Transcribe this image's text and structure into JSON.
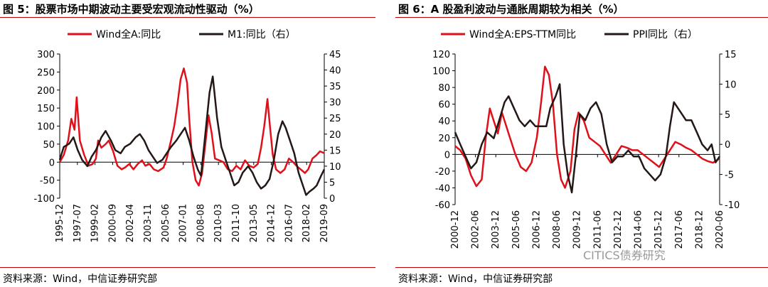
{
  "chart_data": [
    {
      "type": "line",
      "title": "图 5：股票市场中期波动主要受宏观流动性驱动（%）",
      "source": "资料来源：Wind，中信证券研究部",
      "x_ticks": [
        "1995-12",
        "1997-07",
        "1999-02",
        "2000-09",
        "2002-04",
        "2003-11",
        "2005-06",
        "2007-01",
        "2008-08",
        "2010-03",
        "2011-10",
        "2013-05",
        "2014-12",
        "2016-07",
        "2018-02",
        "2019-09"
      ],
      "x_range": [
        1995.92,
        2020.6
      ],
      "y_left": {
        "ticks": [
          "300",
          "250",
          "200",
          "150",
          "100",
          "50",
          "0",
          "-50",
          "-100"
        ],
        "lim": [
          -100,
          300
        ]
      },
      "y_right": {
        "ticks": [
          "45",
          "40",
          "35",
          "30",
          "25",
          "20",
          "15",
          "10",
          "5",
          "0"
        ],
        "lim": [
          0,
          45
        ]
      },
      "series": [
        {
          "name": "Wind全A:同比",
          "axis": "left",
          "color": "#e0101a",
          "points": [
            [
              1995.92,
              0
            ],
            [
              1996.3,
              20
            ],
            [
              1996.7,
              60
            ],
            [
              1997.0,
              120
            ],
            [
              1997.3,
              90
            ],
            [
              1997.5,
              180
            ],
            [
              1997.8,
              60
            ],
            [
              1998.2,
              20
            ],
            [
              1998.6,
              -10
            ],
            [
              1999.0,
              -5
            ],
            [
              1999.3,
              10
            ],
            [
              1999.5,
              60
            ],
            [
              1999.8,
              40
            ],
            [
              2000.2,
              50
            ],
            [
              2000.5,
              60
            ],
            [
              2000.9,
              30
            ],
            [
              2001.3,
              -10
            ],
            [
              2001.7,
              -20
            ],
            [
              2002.0,
              -15
            ],
            [
              2002.4,
              -5
            ],
            [
              2002.8,
              -20
            ],
            [
              2003.2,
              -5
            ],
            [
              2003.6,
              5
            ],
            [
              2003.9,
              -10
            ],
            [
              2004.3,
              -5
            ],
            [
              2004.7,
              -20
            ],
            [
              2005.1,
              -25
            ],
            [
              2005.6,
              -15
            ],
            [
              2005.9,
              10
            ],
            [
              2006.3,
              60
            ],
            [
              2006.6,
              100
            ],
            [
              2006.9,
              160
            ],
            [
              2007.2,
              230
            ],
            [
              2007.5,
              260
            ],
            [
              2007.8,
              220
            ],
            [
              2008.0,
              120
            ],
            [
              2008.3,
              0
            ],
            [
              2008.6,
              -50
            ],
            [
              2008.9,
              -65
            ],
            [
              2009.2,
              -30
            ],
            [
              2009.5,
              50
            ],
            [
              2009.8,
              130
            ],
            [
              2010.1,
              80
            ],
            [
              2010.4,
              10
            ],
            [
              2010.8,
              5
            ],
            [
              2011.2,
              0
            ],
            [
              2011.6,
              -20
            ],
            [
              2012.0,
              -25
            ],
            [
              2012.4,
              -10
            ],
            [
              2012.8,
              -20
            ],
            [
              2013.2,
              5
            ],
            [
              2013.6,
              -10
            ],
            [
              2014.0,
              -15
            ],
            [
              2014.4,
              -5
            ],
            [
              2014.7,
              40
            ],
            [
              2015.0,
              100
            ],
            [
              2015.3,
              175
            ],
            [
              2015.5,
              110
            ],
            [
              2015.8,
              20
            ],
            [
              2016.1,
              -20
            ],
            [
              2016.5,
              -30
            ],
            [
              2016.9,
              -20
            ],
            [
              2017.3,
              10
            ],
            [
              2017.7,
              0
            ],
            [
              2018.0,
              -10
            ],
            [
              2018.4,
              -20
            ],
            [
              2018.8,
              -30
            ],
            [
              2019.1,
              -20
            ],
            [
              2019.5,
              10
            ],
            [
              2019.9,
              20
            ],
            [
              2020.2,
              30
            ],
            [
              2020.6,
              25
            ]
          ]
        },
        {
          "name": "M1:同比（右）",
          "axis": "right",
          "color": "#231815",
          "points": [
            [
              1995.92,
              12
            ],
            [
              1996.3,
              16
            ],
            [
              1996.8,
              17
            ],
            [
              1997.2,
              19
            ],
            [
              1997.6,
              15
            ],
            [
              1998.0,
              12
            ],
            [
              1998.5,
              10
            ],
            [
              1998.9,
              13
            ],
            [
              1999.3,
              15
            ],
            [
              1999.8,
              19
            ],
            [
              2000.2,
              21
            ],
            [
              2000.7,
              18
            ],
            [
              2001.1,
              15
            ],
            [
              2001.6,
              14
            ],
            [
              2002.0,
              16
            ],
            [
              2002.5,
              17
            ],
            [
              2003.0,
              19
            ],
            [
              2003.4,
              20
            ],
            [
              2003.8,
              18
            ],
            [
              2004.2,
              15
            ],
            [
              2004.6,
              13
            ],
            [
              2005.0,
              11
            ],
            [
              2005.5,
              12
            ],
            [
              2005.9,
              14
            ],
            [
              2006.3,
              16
            ],
            [
              2006.8,
              18
            ],
            [
              2007.2,
              20
            ],
            [
              2007.6,
              22
            ],
            [
              2008.0,
              18
            ],
            [
              2008.4,
              13
            ],
            [
              2008.8,
              9
            ],
            [
              2009.1,
              7
            ],
            [
              2009.5,
              20
            ],
            [
              2009.9,
              33
            ],
            [
              2010.2,
              38
            ],
            [
              2010.6,
              25
            ],
            [
              2011.0,
              16
            ],
            [
              2011.4,
              12
            ],
            [
              2011.8,
              8
            ],
            [
              2012.2,
              4
            ],
            [
              2012.6,
              5
            ],
            [
              2013.0,
              8
            ],
            [
              2013.5,
              10
            ],
            [
              2013.9,
              8
            ],
            [
              2014.3,
              5
            ],
            [
              2014.7,
              3
            ],
            [
              2015.1,
              4
            ],
            [
              2015.5,
              6
            ],
            [
              2015.9,
              12
            ],
            [
              2016.3,
              20
            ],
            [
              2016.7,
              24
            ],
            [
              2017.0,
              22
            ],
            [
              2017.4,
              18
            ],
            [
              2017.8,
              14
            ],
            [
              2018.2,
              8
            ],
            [
              2018.6,
              4
            ],
            [
              2018.9,
              1
            ],
            [
              2019.2,
              2
            ],
            [
              2019.6,
              3
            ],
            [
              2019.9,
              4
            ],
            [
              2020.3,
              7
            ],
            [
              2020.6,
              9
            ]
          ]
        }
      ]
    },
    {
      "type": "line",
      "title": "图 6：A 股盈利波动与通胀周期较为相关（%）",
      "source": "资料来源：Wind，中信证券研究部",
      "x_ticks": [
        "2000-12",
        "2002-06",
        "2003-12",
        "2005-06",
        "2006-12",
        "2008-06",
        "2009-12",
        "2011-06",
        "2012-12",
        "2014-06",
        "2015-12",
        "2017-06",
        "2018-12",
        "2020-06"
      ],
      "x_range": [
        2000.92,
        2020.6
      ],
      "y_left": {
        "ticks": [
          "120",
          "100",
          "80",
          "60",
          "40",
          "20",
          "0",
          "-20",
          "-40",
          "-60"
        ],
        "lim": [
          -60,
          120
        ]
      },
      "y_right": {
        "ticks": [
          "15",
          "10",
          "5",
          "0",
          "-5",
          "-10"
        ],
        "lim": [
          -10,
          15
        ]
      },
      "series": [
        {
          "name": "Wind全A:EPS-TTM同比",
          "axis": "left",
          "color": "#e0101a",
          "points": [
            [
              2000.92,
              10
            ],
            [
              2001.3,
              5
            ],
            [
              2001.7,
              -5
            ],
            [
              2002.1,
              -25
            ],
            [
              2002.5,
              -38
            ],
            [
              2002.9,
              -30
            ],
            [
              2003.2,
              20
            ],
            [
              2003.5,
              55
            ],
            [
              2003.8,
              40
            ],
            [
              2004.1,
              25
            ],
            [
              2004.4,
              50
            ],
            [
              2004.7,
              35
            ],
            [
              2005.0,
              20
            ],
            [
              2005.4,
              0
            ],
            [
              2005.8,
              -15
            ],
            [
              2006.2,
              -20
            ],
            [
              2006.6,
              -10
            ],
            [
              2007.0,
              20
            ],
            [
              2007.3,
              60
            ],
            [
              2007.6,
              105
            ],
            [
              2007.9,
              95
            ],
            [
              2008.2,
              60
            ],
            [
              2008.5,
              0
            ],
            [
              2008.8,
              -30
            ],
            [
              2009.1,
              -40
            ],
            [
              2009.5,
              -20
            ],
            [
              2009.8,
              30
            ],
            [
              2010.1,
              50
            ],
            [
              2010.5,
              40
            ],
            [
              2010.9,
              20
            ],
            [
              2011.3,
              15
            ],
            [
              2011.7,
              10
            ],
            [
              2012.1,
              0
            ],
            [
              2012.5,
              -10
            ],
            [
              2012.9,
              0
            ],
            [
              2013.3,
              10
            ],
            [
              2013.7,
              8
            ],
            [
              2014.1,
              5
            ],
            [
              2014.5,
              5
            ],
            [
              2014.9,
              0
            ],
            [
              2015.3,
              -5
            ],
            [
              2015.7,
              -10
            ],
            [
              2016.1,
              -15
            ],
            [
              2016.5,
              -5
            ],
            [
              2016.9,
              5
            ],
            [
              2017.3,
              15
            ],
            [
              2017.7,
              12
            ],
            [
              2018.1,
              8
            ],
            [
              2018.5,
              5
            ],
            [
              2018.9,
              0
            ],
            [
              2019.3,
              -5
            ],
            [
              2019.7,
              -8
            ],
            [
              2020.1,
              -10
            ],
            [
              2020.6,
              -5
            ]
          ]
        },
        {
          "name": "PPI同比（右）",
          "axis": "right",
          "color": "#231815",
          "points": [
            [
              2000.92,
              2
            ],
            [
              2001.3,
              0
            ],
            [
              2001.7,
              -2
            ],
            [
              2002.1,
              -4
            ],
            [
              2002.5,
              -3
            ],
            [
              2002.9,
              0
            ],
            [
              2003.3,
              2
            ],
            [
              2003.8,
              1
            ],
            [
              2004.2,
              4
            ],
            [
              2004.6,
              7
            ],
            [
              2004.9,
              8
            ],
            [
              2005.3,
              6
            ],
            [
              2005.7,
              4
            ],
            [
              2006.1,
              3
            ],
            [
              2006.5,
              4
            ],
            [
              2006.9,
              3
            ],
            [
              2007.3,
              3
            ],
            [
              2007.7,
              3
            ],
            [
              2008.0,
              6
            ],
            [
              2008.4,
              8
            ],
            [
              2008.7,
              10
            ],
            [
              2009.0,
              0
            ],
            [
              2009.3,
              -5
            ],
            [
              2009.6,
              -8
            ],
            [
              2009.9,
              -2
            ],
            [
              2010.2,
              5
            ],
            [
              2010.6,
              4
            ],
            [
              2011.0,
              6
            ],
            [
              2011.4,
              7
            ],
            [
              2011.8,
              5
            ],
            [
              2012.2,
              0
            ],
            [
              2012.6,
              -3
            ],
            [
              2013.0,
              -2
            ],
            [
              2013.4,
              -2
            ],
            [
              2013.8,
              -1
            ],
            [
              2014.2,
              -2
            ],
            [
              2014.6,
              -2
            ],
            [
              2015.0,
              -4
            ],
            [
              2015.4,
              -5
            ],
            [
              2015.8,
              -6
            ],
            [
              2016.2,
              -5
            ],
            [
              2016.6,
              -2
            ],
            [
              2016.9,
              3
            ],
            [
              2017.2,
              7
            ],
            [
              2017.5,
              6
            ],
            [
              2017.8,
              5
            ],
            [
              2018.1,
              4
            ],
            [
              2018.5,
              4
            ],
            [
              2018.9,
              2
            ],
            [
              2019.3,
              0
            ],
            [
              2019.7,
              -1
            ],
            [
              2020.0,
              0
            ],
            [
              2020.3,
              -3
            ],
            [
              2020.6,
              -2
            ]
          ]
        }
      ]
    }
  ],
  "watermark": "CITICS债券研究"
}
